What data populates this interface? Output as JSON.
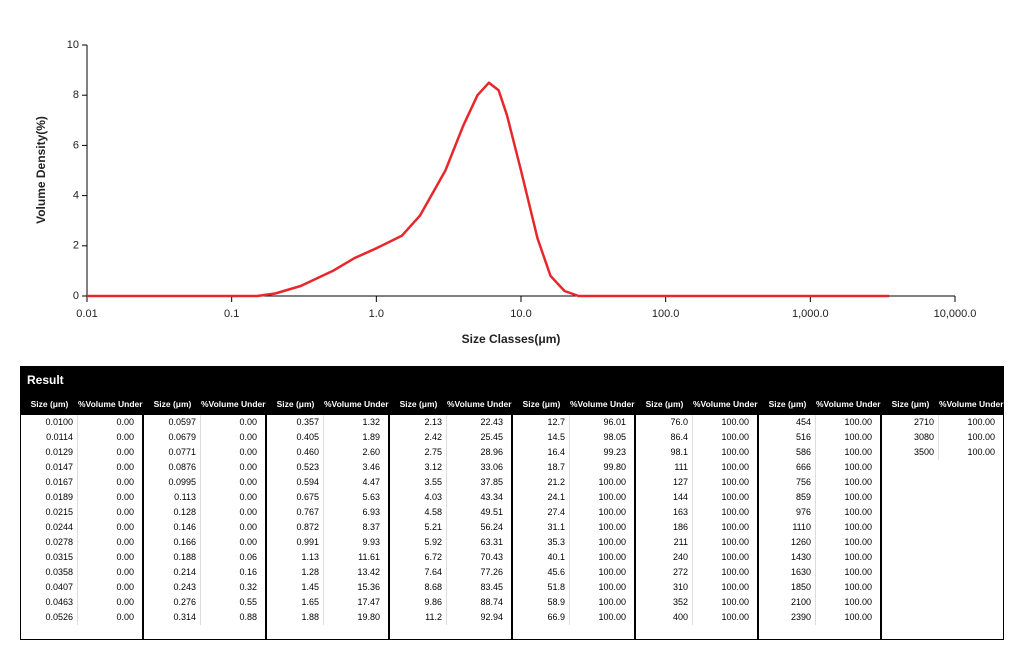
{
  "chart_data": {
    "type": "line",
    "color": "#e8272c",
    "log_x": true,
    "xlabel": "Size Classes(μm)",
    "ylabel": "Volume Density(%)",
    "x": [
      0.01,
      0.1,
      0.15,
      0.2,
      0.3,
      0.5,
      0.7,
      1.0,
      1.5,
      2,
      3,
      4,
      5,
      6,
      7,
      8,
      10,
      13,
      16,
      20,
      25,
      100,
      1000,
      3500
    ],
    "values": [
      0,
      0,
      0,
      0.1,
      0.4,
      1.0,
      1.5,
      1.9,
      2.4,
      3.2,
      5.0,
      6.8,
      8.0,
      8.5,
      8.2,
      7.2,
      5.0,
      2.3,
      0.8,
      0.2,
      0,
      0,
      0,
      0
    ],
    "xlim": [
      0.01,
      10000
    ],
    "ylim": [
      0,
      10
    ],
    "xticks": [
      0.01,
      0.1,
      {
        "value": 1,
        "label": "1.0"
      },
      {
        "value": 10,
        "label": "10.0"
      },
      {
        "value": 100,
        "label": "100.0"
      },
      {
        "value": 1000,
        "label": "1,000.0"
      },
      {
        "value": 10000,
        "label": "10,000.0"
      }
    ],
    "yticks": [
      0,
      2,
      4,
      6,
      8,
      10
    ]
  },
  "table": {
    "title": "Result",
    "headers": [
      "Size (μm)",
      "%Volume Under"
    ],
    "groups": [
      [
        [
          "0.0100",
          "0.00"
        ],
        [
          "0.0114",
          "0.00"
        ],
        [
          "0.0129",
          "0.00"
        ],
        [
          "0.0147",
          "0.00"
        ],
        [
          "0.0167",
          "0.00"
        ],
        [
          "0.0189",
          "0.00"
        ],
        [
          "0.0215",
          "0.00"
        ],
        [
          "0.0244",
          "0.00"
        ],
        [
          "0.0278",
          "0.00"
        ],
        [
          "0.0315",
          "0.00"
        ],
        [
          "0.0358",
          "0.00"
        ],
        [
          "0.0407",
          "0.00"
        ],
        [
          "0.0463",
          "0.00"
        ],
        [
          "0.0526",
          "0.00"
        ]
      ],
      [
        [
          "0.0597",
          "0.00"
        ],
        [
          "0.0679",
          "0.00"
        ],
        [
          "0.0771",
          "0.00"
        ],
        [
          "0.0876",
          "0.00"
        ],
        [
          "0.0995",
          "0.00"
        ],
        [
          "0.113",
          "0.00"
        ],
        [
          "0.128",
          "0.00"
        ],
        [
          "0.146",
          "0.00"
        ],
        [
          "0.166",
          "0.00"
        ],
        [
          "0.188",
          "0.06"
        ],
        [
          "0.214",
          "0.16"
        ],
        [
          "0.243",
          "0.32"
        ],
        [
          "0.276",
          "0.55"
        ],
        [
          "0.314",
          "0.88"
        ]
      ],
      [
        [
          "0.357",
          "1.32"
        ],
        [
          "0.405",
          "1.89"
        ],
        [
          "0.460",
          "2.60"
        ],
        [
          "0.523",
          "3.46"
        ],
        [
          "0.594",
          "4.47"
        ],
        [
          "0.675",
          "5.63"
        ],
        [
          "0.767",
          "6.93"
        ],
        [
          "0.872",
          "8.37"
        ],
        [
          "0.991",
          "9.93"
        ],
        [
          "1.13",
          "11.61"
        ],
        [
          "1.28",
          "13.42"
        ],
        [
          "1.45",
          "15.36"
        ],
        [
          "1.65",
          "17.47"
        ],
        [
          "1.88",
          "19.80"
        ]
      ],
      [
        [
          "2.13",
          "22.43"
        ],
        [
          "2.42",
          "25.45"
        ],
        [
          "2.75",
          "28.96"
        ],
        [
          "3.12",
          "33.06"
        ],
        [
          "3.55",
          "37.85"
        ],
        [
          "4.03",
          "43.34"
        ],
        [
          "4.58",
          "49.51"
        ],
        [
          "5.21",
          "56.24"
        ],
        [
          "5.92",
          "63.31"
        ],
        [
          "6.72",
          "70.43"
        ],
        [
          "7.64",
          "77.26"
        ],
        [
          "8.68",
          "83.45"
        ],
        [
          "9.86",
          "88.74"
        ],
        [
          "11.2",
          "92.94"
        ]
      ],
      [
        [
          "12.7",
          "96.01"
        ],
        [
          "14.5",
          "98.05"
        ],
        [
          "16.4",
          "99.23"
        ],
        [
          "18.7",
          "99.80"
        ],
        [
          "21.2",
          "100.00"
        ],
        [
          "24.1",
          "100.00"
        ],
        [
          "27.4",
          "100.00"
        ],
        [
          "31.1",
          "100.00"
        ],
        [
          "35.3",
          "100.00"
        ],
        [
          "40.1",
          "100.00"
        ],
        [
          "45.6",
          "100.00"
        ],
        [
          "51.8",
          "100.00"
        ],
        [
          "58.9",
          "100.00"
        ],
        [
          "66.9",
          "100.00"
        ]
      ],
      [
        [
          "76.0",
          "100.00"
        ],
        [
          "86.4",
          "100.00"
        ],
        [
          "98.1",
          "100.00"
        ],
        [
          "111",
          "100.00"
        ],
        [
          "127",
          "100.00"
        ],
        [
          "144",
          "100.00"
        ],
        [
          "163",
          "100.00"
        ],
        [
          "186",
          "100.00"
        ],
        [
          "211",
          "100.00"
        ],
        [
          "240",
          "100.00"
        ],
        [
          "272",
          "100.00"
        ],
        [
          "310",
          "100.00"
        ],
        [
          "352",
          "100.00"
        ],
        [
          "400",
          "100.00"
        ]
      ],
      [
        [
          "454",
          "100.00"
        ],
        [
          "516",
          "100.00"
        ],
        [
          "586",
          "100.00"
        ],
        [
          "666",
          "100.00"
        ],
        [
          "756",
          "100.00"
        ],
        [
          "859",
          "100.00"
        ],
        [
          "976",
          "100.00"
        ],
        [
          "1110",
          "100.00"
        ],
        [
          "1260",
          "100.00"
        ],
        [
          "1430",
          "100.00"
        ],
        [
          "1630",
          "100.00"
        ],
        [
          "1850",
          "100.00"
        ],
        [
          "2100",
          "100.00"
        ],
        [
          "2390",
          "100.00"
        ]
      ],
      [
        [
          "2710",
          "100.00"
        ],
        [
          "3080",
          "100.00"
        ],
        [
          "3500",
          "100.00"
        ]
      ]
    ]
  }
}
